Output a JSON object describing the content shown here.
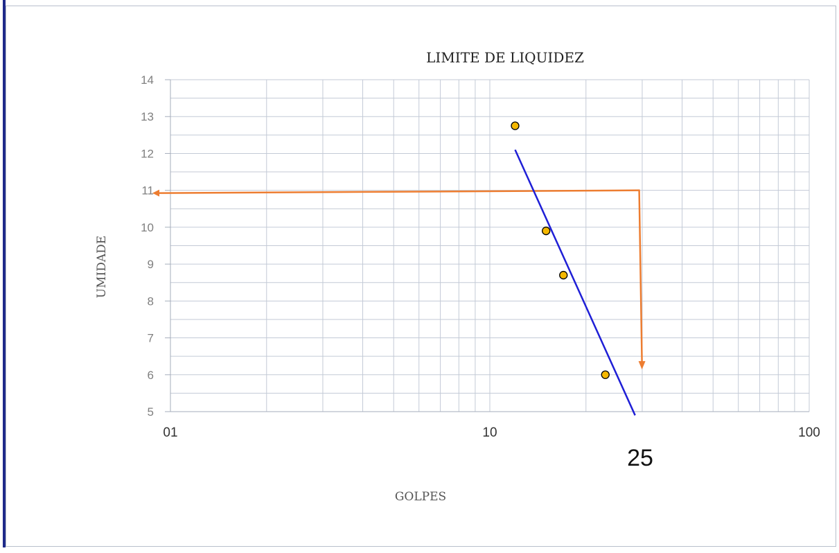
{
  "chart_data": {
    "type": "scatter",
    "title": "LIMITE DE LIQUIDEZ",
    "xlabel": "GOLPES",
    "ylabel": "UMIDADE",
    "x_scale": "log",
    "xlim": [
      1,
      100
    ],
    "ylim": [
      5,
      14
    ],
    "x_ticks": [
      {
        "value": 1,
        "label": "01"
      },
      {
        "value": 10,
        "label": "10"
      },
      {
        "value": 100,
        "label": "100"
      }
    ],
    "y_ticks": [
      5,
      6,
      7,
      8,
      9,
      10,
      11,
      12,
      13,
      14
    ],
    "grid": true,
    "points": [
      {
        "x": 12,
        "y": 12.75
      },
      {
        "x": 15,
        "y": 9.9
      },
      {
        "x": 17,
        "y": 8.7
      },
      {
        "x": 23,
        "y": 6.0
      }
    ],
    "trendline": {
      "x": [
        12,
        28.5
      ],
      "y": [
        12.1,
        4.9
      ],
      "color": "#1f1fd6"
    },
    "annotation_lines": {
      "color": "#ed7d31",
      "horizontal": {
        "y": 11.0,
        "x_from": 29.5,
        "x_to": 1
      },
      "vertical": {
        "x": 29.5,
        "y_from": 11.0,
        "y_to": 6.2
      }
    },
    "annotation_text": "25",
    "marker_color": "#f5b800"
  }
}
